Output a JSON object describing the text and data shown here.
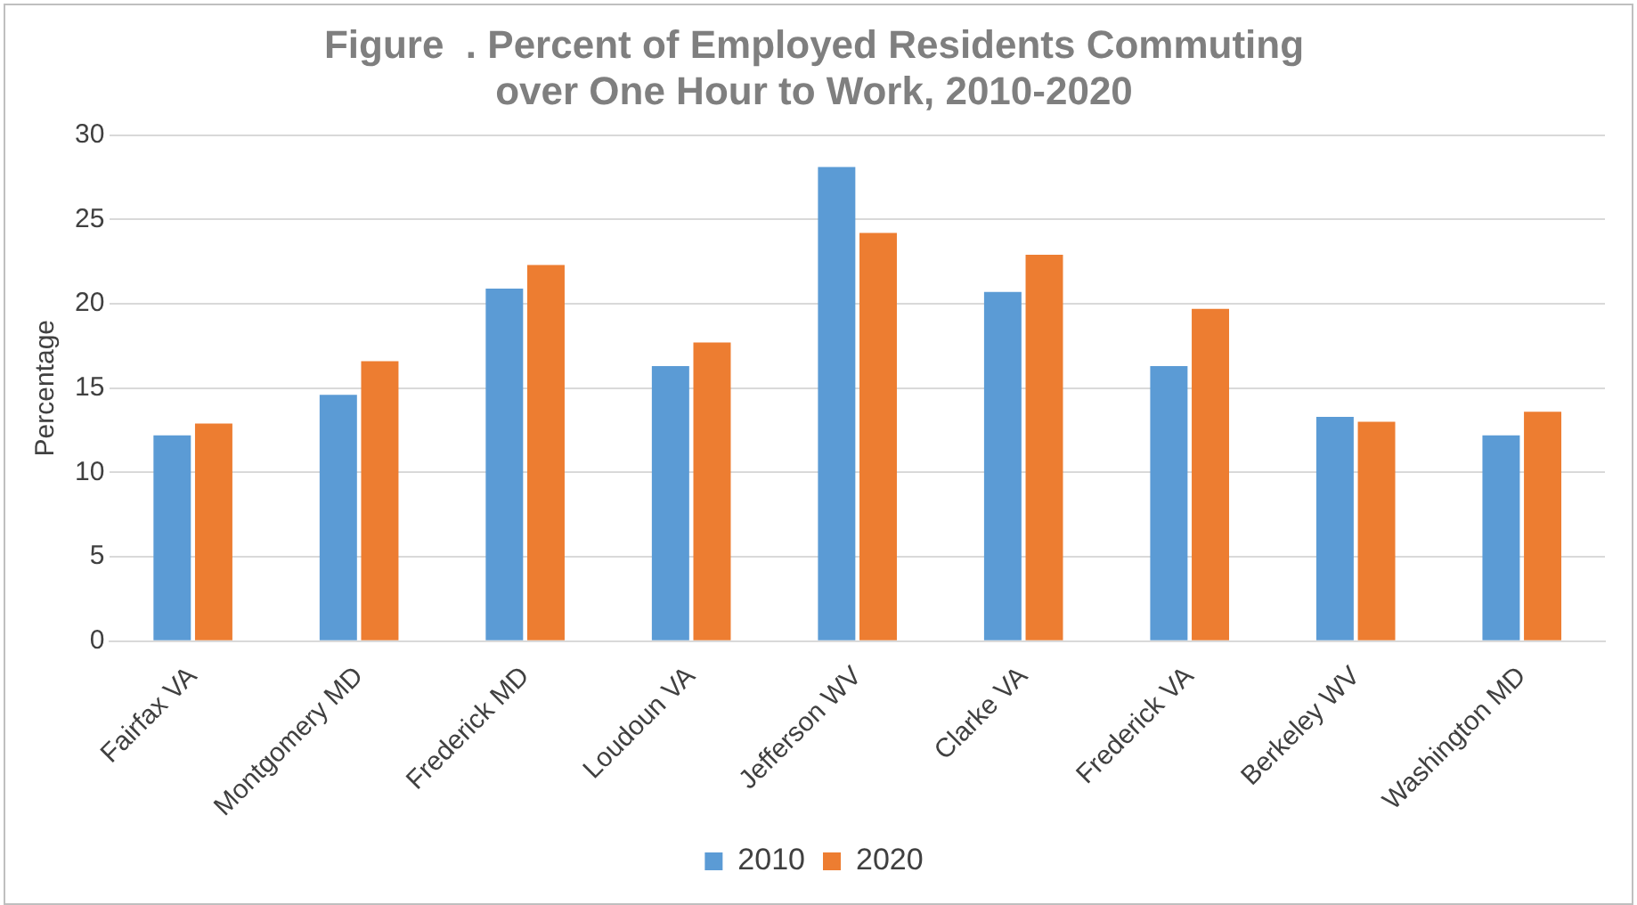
{
  "chart_data": {
    "type": "bar",
    "title": "Figure  . Percent of Employed Residents Commuting\nover One Hour to Work, 2010-2020",
    "ylabel": "Percentage",
    "categories": [
      "Fairfax VA",
      "Montgomery MD",
      "Frederick MD",
      "Loudoun VA",
      "Jefferson WV",
      "Clarke VA",
      "Frederick VA",
      "Berkeley WV",
      "Washington MD"
    ],
    "series": [
      {
        "name": "2010",
        "color": "#5b9bd5",
        "values": [
          12.2,
          14.6,
          20.9,
          16.3,
          28.1,
          20.7,
          16.3,
          13.3,
          12.2
        ]
      },
      {
        "name": "2020",
        "color": "#ed7d31",
        "values": [
          12.9,
          16.6,
          22.3,
          17.7,
          24.2,
          22.9,
          19.7,
          13.0,
          13.6
        ]
      }
    ],
    "ylim": [
      0,
      30
    ],
    "yticks": [
      0,
      5,
      10,
      15,
      20,
      25,
      30
    ],
    "grid": "y",
    "legend": "bottom"
  }
}
